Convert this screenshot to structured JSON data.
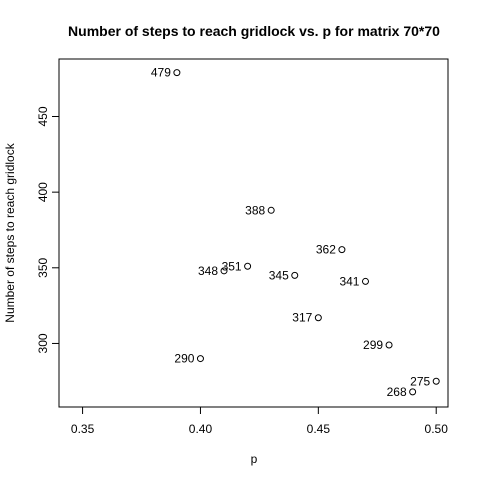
{
  "chart_data": {
    "type": "scatter",
    "title": "Number of steps to reach gridlock vs. p for matrix 70*70",
    "xlabel": "p",
    "ylabel": "Number of steps to reach gridlock",
    "xlim": [
      0.34,
      0.505
    ],
    "ylim": [
      258,
      488
    ],
    "x_ticks": [
      "0.35",
      "0.40",
      "0.45",
      "0.50"
    ],
    "y_ticks": [
      "300",
      "350",
      "400",
      "450"
    ],
    "grid": false,
    "marker": "open-circle",
    "points": [
      {
        "x": 0.39,
        "y": 479,
        "label": "479"
      },
      {
        "x": 0.4,
        "y": 290,
        "label": "290"
      },
      {
        "x": 0.41,
        "y": 348,
        "label": "348"
      },
      {
        "x": 0.42,
        "y": 351,
        "label": "351"
      },
      {
        "x": 0.43,
        "y": 388,
        "label": "388"
      },
      {
        "x": 0.44,
        "y": 345,
        "label": "345"
      },
      {
        "x": 0.45,
        "y": 317,
        "label": "317"
      },
      {
        "x": 0.46,
        "y": 362,
        "label": "362"
      },
      {
        "x": 0.47,
        "y": 341,
        "label": "341"
      },
      {
        "x": 0.48,
        "y": 299,
        "label": "299"
      },
      {
        "x": 0.49,
        "y": 268,
        "label": "268"
      },
      {
        "x": 0.5,
        "y": 275,
        "label": "275"
      }
    ]
  }
}
